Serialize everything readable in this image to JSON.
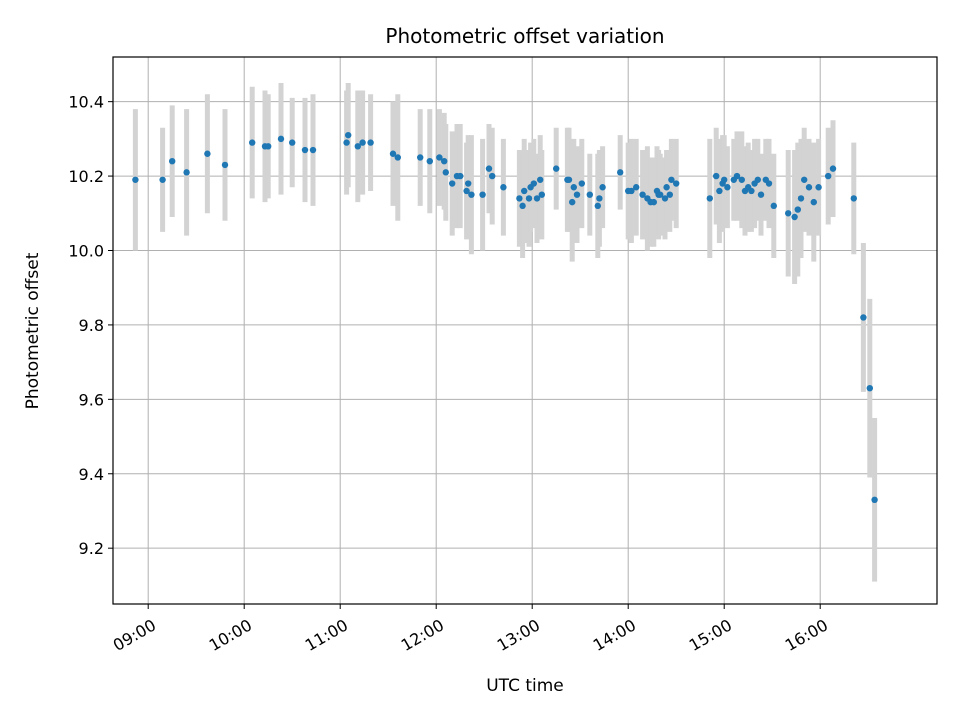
{
  "chart_data": {
    "type": "scatter",
    "title": "Photometric offset variation",
    "xlabel": "UTC time",
    "ylabel": "Photometric offset",
    "x_ticks": [
      "09:00",
      "10:00",
      "11:00",
      "12:00",
      "13:00",
      "14:00",
      "15:00",
      "16:00"
    ],
    "y_ticks": [
      "9.2",
      "9.4",
      "9.6",
      "9.8",
      "10.0",
      "10.2",
      "10.4"
    ],
    "xlim": [
      "08:38",
      "17:13"
    ],
    "ylim": [
      9.05,
      10.52
    ],
    "grid": true,
    "point_color": "#1f77b4",
    "errorbar_color": "#d3d3d3",
    "series": [
      {
        "x": [
          "08:52",
          "09:09",
          "09:15",
          "09:24",
          "09:37",
          "09:48",
          "10:05",
          "10:13",
          "10:15",
          "10:23",
          "10:30",
          "10:38",
          "10:43",
          "11:04",
          "11:05",
          "11:11",
          "11:14",
          "11:19",
          "11:33",
          "11:36",
          "11:50",
          "11:56",
          "12:02",
          "12:05",
          "12:06",
          "12:10",
          "12:13",
          "12:15",
          "12:19",
          "12:20",
          "12:22",
          "12:29",
          "12:33",
          "12:35",
          "12:42",
          "12:52",
          "12:54",
          "12:55",
          "12:58",
          "12:59",
          "13:01",
          "13:03",
          "13:05",
          "13:06",
          "13:15",
          "13:22",
          "13:23",
          "13:25",
          "13:26",
          "13:28",
          "13:31",
          "13:36",
          "13:41",
          "13:42",
          "13:44",
          "13:55",
          "14:00",
          "14:02",
          "14:05",
          "14:09",
          "14:12",
          "14:14",
          "14:16",
          "14:18",
          "14:19",
          "14:20",
          "14:23",
          "14:24",
          "14:26",
          "14:27",
          "14:30",
          "14:51",
          "14:55",
          "14:57",
          "14:59",
          "15:00",
          "15:02",
          "15:06",
          "15:08",
          "15:11",
          "15:13",
          "15:15",
          "15:17",
          "15:19",
          "15:21",
          "15:23",
          "15:26",
          "15:28",
          "15:31",
          "15:40",
          "15:44",
          "15:46",
          "15:48",
          "15:50",
          "15:53",
          "15:56",
          "15:59",
          "16:05",
          "16:08",
          "16:21",
          "16:27",
          "16:31",
          "16:34"
        ],
        "y": [
          10.19,
          10.19,
          10.24,
          10.21,
          10.26,
          10.23,
          10.29,
          10.28,
          10.28,
          10.3,
          10.29,
          10.27,
          10.27,
          10.29,
          10.31,
          10.28,
          10.29,
          10.29,
          10.26,
          10.25,
          10.25,
          10.24,
          10.25,
          10.24,
          10.21,
          10.18,
          10.2,
          10.2,
          10.16,
          10.18,
          10.15,
          10.15,
          10.22,
          10.2,
          10.17,
          10.14,
          10.12,
          10.16,
          10.14,
          10.17,
          10.18,
          10.14,
          10.19,
          10.15,
          10.22,
          10.19,
          10.19,
          10.13,
          10.17,
          10.15,
          10.18,
          10.15,
          10.12,
          10.14,
          10.17,
          10.21,
          10.16,
          10.16,
          10.17,
          10.15,
          10.14,
          10.13,
          10.13,
          10.16,
          10.15,
          10.15,
          10.14,
          10.17,
          10.15,
          10.19,
          10.18,
          10.14,
          10.2,
          10.16,
          10.18,
          10.19,
          10.17,
          10.19,
          10.2,
          10.19,
          10.16,
          10.17,
          10.16,
          10.18,
          10.19,
          10.15,
          10.19,
          10.18,
          10.12,
          10.1,
          10.09,
          10.11,
          10.14,
          10.19,
          10.17,
          10.13,
          10.17,
          10.2,
          10.22,
          10.14,
          9.82,
          9.63,
          9.33
        ],
        "err": [
          0.19,
          0.14,
          0.15,
          0.17,
          0.16,
          0.15,
          0.15,
          0.15,
          0.14,
          0.15,
          0.12,
          0.14,
          0.15,
          0.14,
          0.14,
          0.15,
          0.14,
          0.13,
          0.14,
          0.17,
          0.13,
          0.14,
          0.13,
          0.13,
          0.13,
          0.14,
          0.14,
          0.14,
          0.13,
          0.13,
          0.16,
          0.15,
          0.12,
          0.13,
          0.13,
          0.13,
          0.14,
          0.14,
          0.13,
          0.12,
          0.12,
          0.12,
          0.12,
          0.12,
          0.11,
          0.14,
          0.14,
          0.16,
          0.13,
          0.13,
          0.12,
          0.11,
          0.14,
          0.13,
          0.11,
          0.1,
          0.13,
          0.14,
          0.13,
          0.12,
          0.14,
          0.12,
          0.12,
          0.12,
          0.12,
          0.11,
          0.11,
          0.1,
          0.1,
          0.11,
          0.12,
          0.16,
          0.13,
          0.14,
          0.13,
          0.12,
          0.11,
          0.11,
          0.12,
          0.13,
          0.12,
          0.12,
          0.11,
          0.12,
          0.11,
          0.11,
          0.11,
          0.12,
          0.14,
          0.17,
          0.18,
          0.18,
          0.16,
          0.14,
          0.13,
          0.16,
          0.13,
          0.13,
          0.13,
          0.15,
          0.2,
          0.24,
          0.22
        ]
      }
    ]
  }
}
